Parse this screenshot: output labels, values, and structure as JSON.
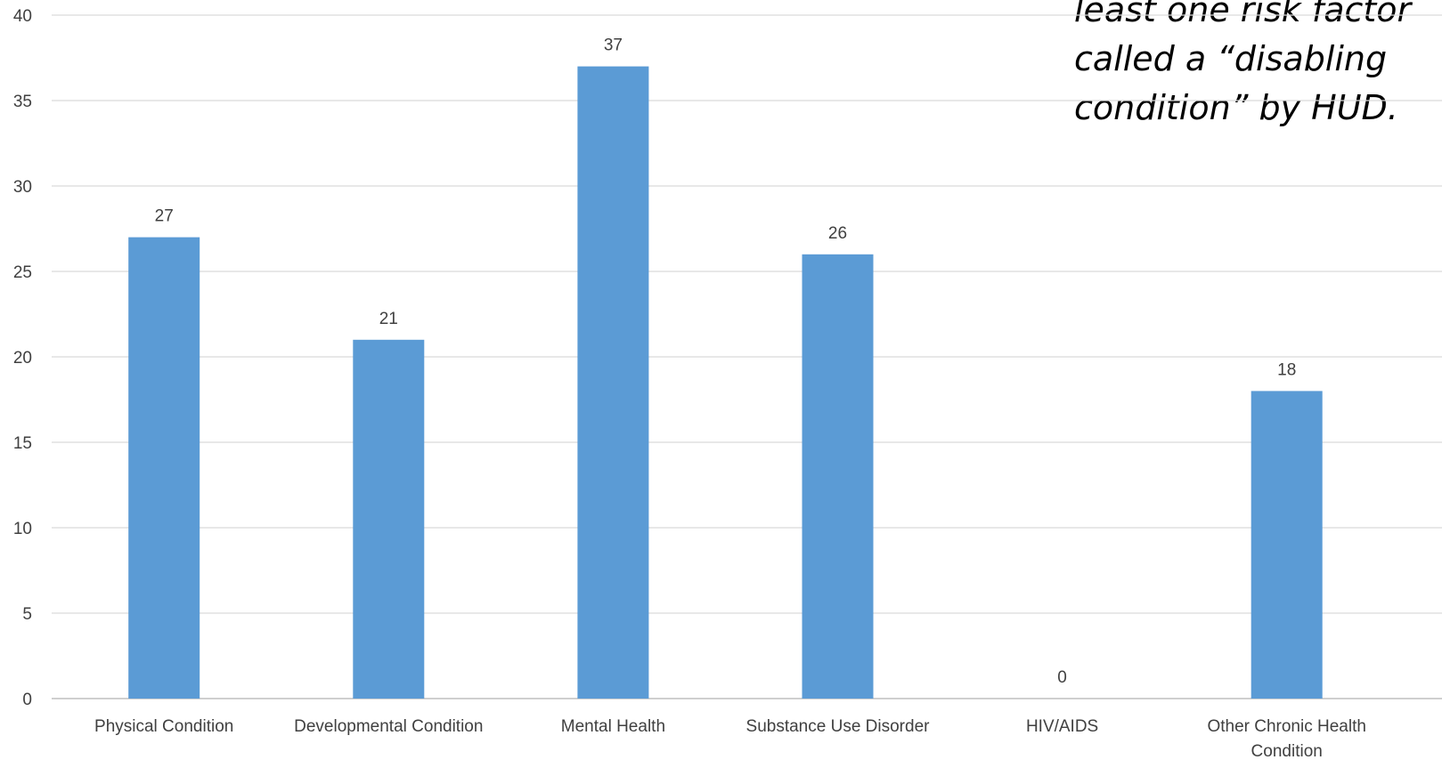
{
  "annotation": {
    "lines": [
      "least one risk factor",
      "called a “disabling",
      "condition” by HUD."
    ]
  },
  "chart_data": {
    "type": "bar",
    "title": "",
    "xlabel": "",
    "ylabel": "",
    "categories": [
      "Physical Condition",
      "Developmental Condition",
      "Mental Health",
      "Substance Use Disorder",
      "HIV/AIDS",
      "Other Chronic Health Condition"
    ],
    "values": [
      27,
      21,
      37,
      26,
      0,
      18
    ],
    "data_labels": [
      "27",
      "21",
      "37",
      "26",
      "0",
      "18"
    ],
    "ylim": [
      0,
      40
    ],
    "yticks": [
      0,
      5,
      10,
      15,
      20,
      25,
      30,
      35,
      40
    ],
    "grid": true,
    "legend": "none",
    "colors": {
      "bar": "#5b9bd5",
      "grid": "#d9d9d9",
      "axis": "#bfbfbf",
      "text": "#404040"
    }
  }
}
